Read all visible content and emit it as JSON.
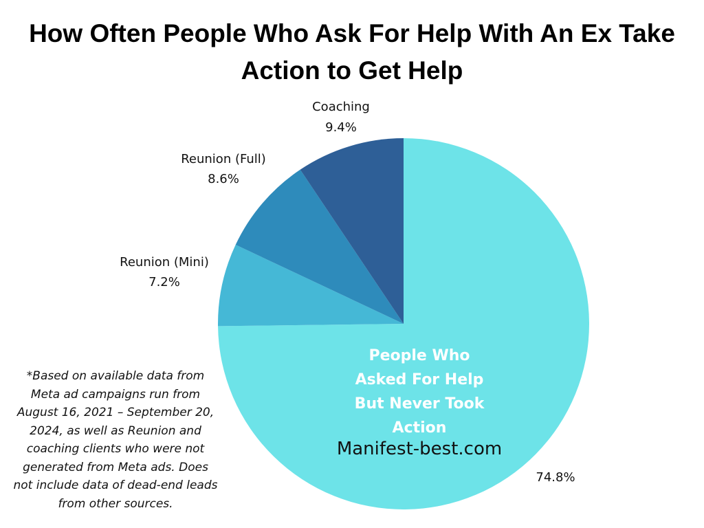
{
  "chart_data": {
    "type": "pie",
    "title": "How Often People Who Ask For Help With An Ex Take Action to Get Help",
    "categories": [
      "People Who Asked For Help But Never Took Action",
      "Reunion (Mini)",
      "Reunion (Full)",
      "Coaching"
    ],
    "values": [
      74.8,
      7.2,
      8.6,
      9.4
    ],
    "value_labels": [
      "74.8%",
      "7.2%",
      "8.6%",
      "9.4%"
    ],
    "colors": [
      "#6de3e8",
      "#45b8d6",
      "#2e8bbb",
      "#2e5f97"
    ],
    "annotations": [
      "Manifest-best.com",
      "*Based on available data from Meta ad campaigns run from August 16, 2021 – September 20, 2024, as well as Reunion and coaching clients who were not generated from Meta ads. Does not include data of dead-end leads from other sources."
    ]
  }
}
